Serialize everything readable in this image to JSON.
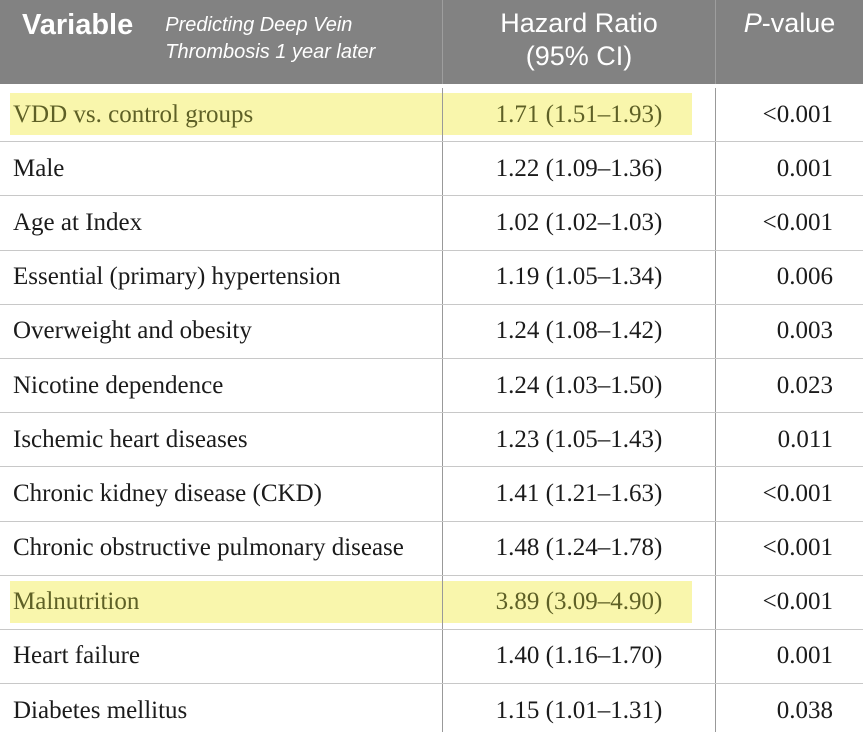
{
  "header": {
    "variable_label": "Variable",
    "subtitle_line1": "Predicting Deep Vein",
    "subtitle_line2": "Thrombosis 1 year later",
    "hazard_line1": "Hazard Ratio",
    "hazard_line2": "(95% CI)",
    "p_value_italic": "P",
    "p_value_rest": "-value"
  },
  "colors": {
    "header_bg": "#828282",
    "header_text": "#ffffff",
    "header_divider": "#9e9e9e",
    "row_divider": "#c8c8c8",
    "column_divider": "#999999",
    "highlight_bg": "#f9f6ac",
    "highlight_text": "#5e6026",
    "body_text": "#1b1b1b",
    "page_bg": "#ffffff"
  },
  "rows": [
    {
      "variable": "VDD vs. control groups",
      "hazard_ratio": "1.71 (1.51–1.93)",
      "p_value": "<0.001",
      "highlighted": true
    },
    {
      "variable": "Male",
      "hazard_ratio": "1.22 (1.09–1.36)",
      "p_value": "0.001",
      "highlighted": false
    },
    {
      "variable": "Age at Index",
      "hazard_ratio": "1.02 (1.02–1.03)",
      "p_value": "<0.001",
      "highlighted": false
    },
    {
      "variable": "Essential (primary) hypertension",
      "hazard_ratio": "1.19 (1.05–1.34)",
      "p_value": "0.006",
      "highlighted": false
    },
    {
      "variable": "Overweight and obesity",
      "hazard_ratio": "1.24 (1.08–1.42)",
      "p_value": "0.003",
      "highlighted": false
    },
    {
      "variable": "Nicotine dependence",
      "hazard_ratio": "1.24 (1.03–1.50)",
      "p_value": "0.023",
      "highlighted": false
    },
    {
      "variable": "Ischemic heart diseases",
      "hazard_ratio": "1.23 (1.05–1.43)",
      "p_value": "0.011",
      "highlighted": false
    },
    {
      "variable": "Chronic kidney disease (CKD)",
      "hazard_ratio": "1.41 (1.21–1.63)",
      "p_value": "<0.001",
      "highlighted": false
    },
    {
      "variable": "Chronic obstructive pulmonary disease",
      "hazard_ratio": "1.48 (1.24–1.78)",
      "p_value": "<0.001",
      "highlighted": false
    },
    {
      "variable": "Malnutrition",
      "hazard_ratio": "3.89 (3.09–4.90)",
      "p_value": "<0.001",
      "highlighted": true
    },
    {
      "variable": "Heart failure",
      "hazard_ratio": "1.40 (1.16–1.70)",
      "p_value": "0.001",
      "highlighted": false
    },
    {
      "variable": "Diabetes mellitus",
      "hazard_ratio": "1.15 (1.01–1.31)",
      "p_value": "0.038",
      "highlighted": false
    }
  ]
}
